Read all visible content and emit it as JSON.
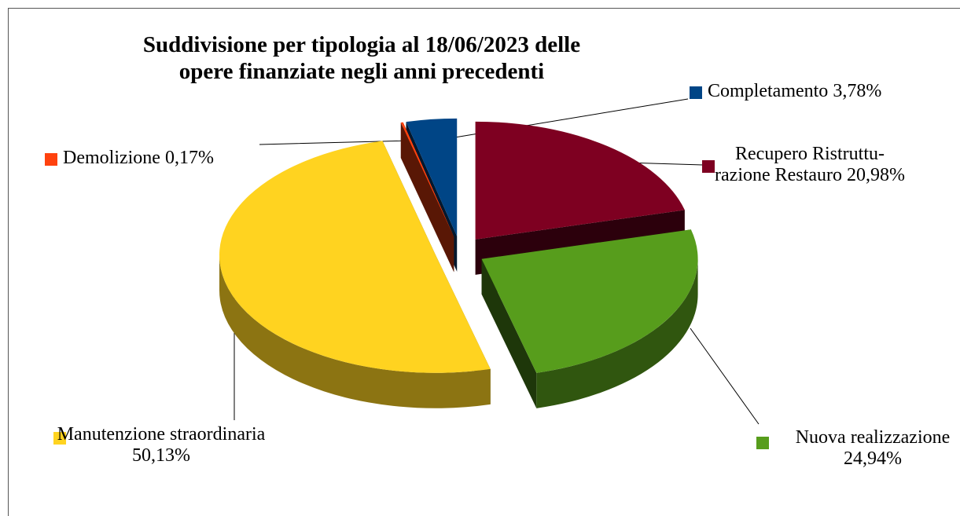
{
  "chart_data": {
    "type": "pie3d",
    "title": "Suddivisione per tipologia al 18/06/2023 delle opere finanziate negli anni precedenti",
    "categories": [
      "Recupero Ristruttu-razione Restauro",
      "Nuova realizzazione",
      "Manutenzione straordinaria",
      "Demolizione",
      "Completamento"
    ],
    "values": [
      20.98,
      24.94,
      50.13,
      0.17,
      3.78
    ],
    "value_labels": [
      "20,98%",
      "24,94%",
      "50,13%",
      "0,17%",
      "3,78%"
    ],
    "colors": [
      "#7e0021",
      "#579d1c",
      "#ffd320",
      "#ff420e",
      "#004586"
    ]
  }
}
